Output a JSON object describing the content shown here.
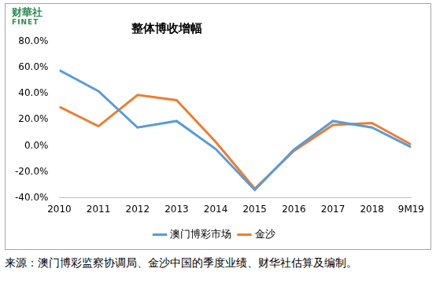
{
  "chart_data": {
    "type": "line",
    "title": "整体博收增幅",
    "brand": "财華社",
    "brand_en": "FINET",
    "source": "来源：澳门博彩监察协调局、金沙中国的季度业绩、财华社估算及编制。",
    "categories": [
      "2010",
      "2011",
      "2012",
      "2013",
      "2014",
      "2015",
      "2016",
      "2017",
      "2018",
      "9M19"
    ],
    "series": [
      {
        "name": "澳门博彩市场",
        "color": "#5b9bd5",
        "values": [
          58,
          42,
          14,
          19,
          -2.5,
          -34,
          -3,
          19,
          14,
          -1
        ]
      },
      {
        "name": "金沙",
        "color": "#ed7d31",
        "values": [
          30,
          15,
          39,
          35,
          3,
          -33,
          -4,
          16,
          17.5,
          1
        ]
      }
    ],
    "ylim": [
      -40,
      80
    ],
    "yticks": [
      {
        "value": -40,
        "label": "-40.0%"
      },
      {
        "value": -20,
        "label": "-20.0%"
      },
      {
        "value": 0,
        "label": "0.0%"
      },
      {
        "value": 20,
        "label": "20.0%"
      },
      {
        "value": 40,
        "label": "40.0%"
      },
      {
        "value": 60,
        "label": "60.0%"
      },
      {
        "value": 80,
        "label": "80.0%"
      }
    ],
    "grid": false,
    "legend": "bottom",
    "marker": "none"
  }
}
